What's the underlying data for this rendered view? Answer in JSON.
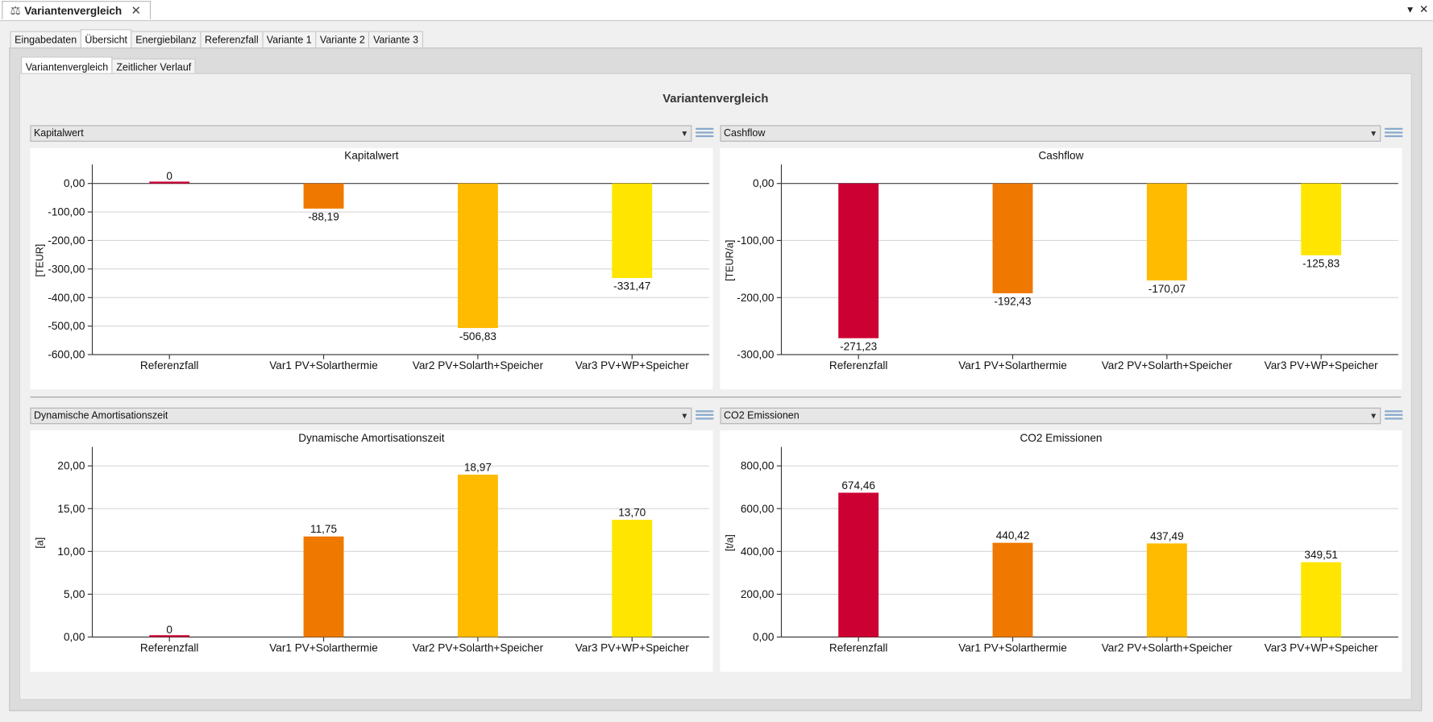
{
  "window": {
    "title": "Variantenvergleich"
  },
  "tabs": [
    "Eingabedaten",
    "Übersicht",
    "Energiebilanz",
    "Referenzfall",
    "Variante 1",
    "Variante 2",
    "Variante 3"
  ],
  "subtabs": [
    "Variantenvergleich",
    "Zeitlicher Verlauf"
  ],
  "page_title": "Variantenvergleich",
  "colors": [
    "#cc0033",
    "#ef7800",
    "#ffbb00",
    "#ffe500"
  ],
  "chart_data": [
    {
      "type": "bar",
      "selector": "Kapitalwert",
      "title": "Kapitalwert",
      "ylabel": "[TEUR]",
      "categories": [
        "Referenzfall",
        "Var1 PV+Solarthermie",
        "Var2 PV+Solarth+Speicher",
        "Var3 PV+WP+Speicher"
      ],
      "values": [
        0,
        -88.19,
        -506.83,
        -331.47
      ],
      "value_labels": [
        "0",
        "-88,19",
        "-506,83",
        "-331,47"
      ],
      "ylim": [
        -600,
        60
      ],
      "yticks": [
        0,
        -100,
        -200,
        -300,
        -400,
        -500,
        -600
      ],
      "ytick_labels": [
        "0,00",
        "-100,00",
        "-200,00",
        "-300,00",
        "-400,00",
        "-500,00",
        "-600,00"
      ]
    },
    {
      "type": "bar",
      "selector": "Cashflow",
      "title": "Cashflow",
      "ylabel": "[TEUR/a]",
      "categories": [
        "Referenzfall",
        "Var1 PV+Solarthermie",
        "Var2 PV+Solarth+Speicher",
        "Var3 PV+WP+Speicher"
      ],
      "values": [
        -271.23,
        -192.43,
        -170.07,
        -125.83
      ],
      "value_labels": [
        "-271,23",
        "-192,43",
        "-170,07",
        "-125,83"
      ],
      "ylim": [
        -300,
        30
      ],
      "yticks": [
        0,
        -100,
        -200,
        -300
      ],
      "ytick_labels": [
        "0,00",
        "-100,00",
        "-200,00",
        "-300,00"
      ]
    },
    {
      "type": "bar",
      "selector": "Dynamische Amortisationszeit",
      "title": "Dynamische Amortisationszeit",
      "ylabel": "[a]",
      "categories": [
        "Referenzfall",
        "Var1 PV+Solarthermie",
        "Var2 PV+Solarth+Speicher",
        "Var3 PV+WP+Speicher"
      ],
      "values": [
        0,
        11.75,
        18.97,
        13.7
      ],
      "value_labels": [
        "0",
        "11,75",
        "18,97",
        "13,70"
      ],
      "ylim": [
        0,
        22
      ],
      "yticks": [
        0,
        5,
        10,
        15,
        20
      ],
      "ytick_labels": [
        "0,00",
        "5,00",
        "10,00",
        "15,00",
        "20,00"
      ]
    },
    {
      "type": "bar",
      "selector": "CO2 Emissionen",
      "title": "CO2 Emissionen",
      "ylabel": "[t/a]",
      "categories": [
        "Referenzfall",
        "Var1 PV+Solarthermie",
        "Var2 PV+Solarth+Speicher",
        "Var3 PV+WP+Speicher"
      ],
      "values": [
        674.46,
        440.42,
        437.49,
        349.51
      ],
      "value_labels": [
        "674,46",
        "440,42",
        "437,49",
        "349,51"
      ],
      "ylim": [
        0,
        880
      ],
      "yticks": [
        0,
        200,
        400,
        600,
        800
      ],
      "ytick_labels": [
        "0,00",
        "200,00",
        "400,00",
        "600,00",
        "800,00"
      ]
    }
  ]
}
